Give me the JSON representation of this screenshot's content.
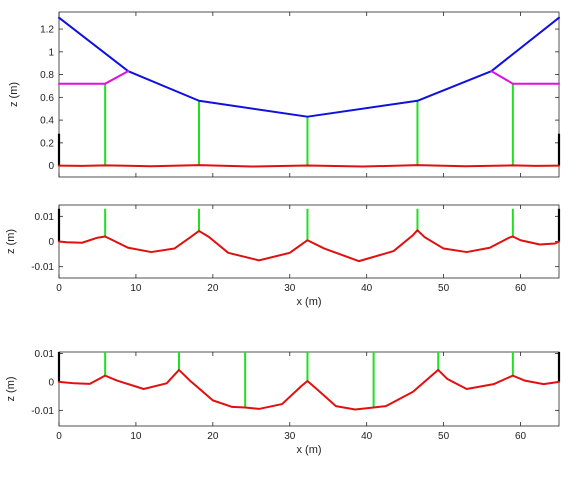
{
  "chart_data": [
    {
      "type": "line",
      "xlim": [
        0,
        65
      ],
      "ylim": [
        -0.1,
        1.35
      ],
      "ylabel": "z (m)",
      "xlabel": "",
      "show_x_tick_labels": false,
      "yticks": [
        0,
        0.2,
        0.4,
        0.6,
        0.8,
        1,
        1.2
      ],
      "ytick_labels": [
        "0",
        "0.2",
        "0.4",
        "0.6",
        "0.8",
        "1",
        "1.2"
      ],
      "xticks": [
        0,
        10,
        20,
        30,
        40,
        50,
        60
      ],
      "xtick_labels": [
        "0",
        "10",
        "20",
        "30",
        "40",
        "50",
        "60"
      ],
      "series": [
        {
          "color": "#1010e0",
          "role": "main-cable",
          "x": [
            0,
            9,
            18.2,
            32.3,
            46.6,
            56.2,
            65
          ],
          "y": [
            1.3,
            0.83,
            0.57,
            0.43,
            0.57,
            0.83,
            1.3
          ]
        },
        {
          "color": "#e010e0",
          "role": "backstay-left",
          "x": [
            0,
            6,
            9
          ],
          "y": [
            0.72,
            0.72,
            0.83
          ]
        },
        {
          "color": "#e010e0",
          "role": "backstay-right",
          "x": [
            56.2,
            59,
            65
          ],
          "y": [
            0.83,
            0.72,
            0.72
          ]
        },
        {
          "color": "#e01010",
          "role": "deck",
          "x": [
            0,
            3,
            6,
            12,
            18.2,
            25,
            32.3,
            39.5,
            46.6,
            52.8,
            59,
            62,
            65
          ],
          "y": [
            0,
            -0.002,
            0.002,
            -0.005,
            0.004,
            -0.008,
            0.001,
            -0.008,
            0.004,
            -0.005,
            0.002,
            -0.002,
            0
          ]
        }
      ],
      "hangers": {
        "color": "#20e020",
        "x": [
          6,
          18.2,
          32.3,
          46.6,
          59
        ],
        "y_bottom": [
          0.002,
          0.004,
          0.001,
          0.004,
          0.002
        ],
        "y_top": [
          0.72,
          0.57,
          0.43,
          0.57,
          0.72
        ]
      },
      "supports": {
        "color": "#000000",
        "x": [
          0,
          65
        ],
        "y_bottom": [
          0,
          0
        ],
        "y_top": [
          0.28,
          0.28
        ]
      }
    },
    {
      "type": "line",
      "xlim": [
        0,
        65
      ],
      "ylim": [
        -0.0145,
        0.0145
      ],
      "ylabel": "z (m)",
      "xlabel": "x (m)",
      "show_x_tick_labels": true,
      "yticks": [
        -0.01,
        0,
        0.01
      ],
      "ytick_labels": [
        "-0.01",
        "0",
        "0.01"
      ],
      "xticks": [
        0,
        10,
        20,
        30,
        40,
        50,
        60
      ],
      "xtick_labels": [
        "0",
        "10",
        "20",
        "30",
        "40",
        "50",
        "60"
      ],
      "series": [
        {
          "color": "#e01010",
          "role": "deck",
          "x": [
            0,
            1,
            3,
            5,
            6,
            7,
            9,
            12,
            15,
            17,
            18.2,
            19.5,
            22,
            26,
            30,
            32.3,
            34.5,
            39,
            43.5,
            46,
            46.6,
            47.5,
            50,
            53,
            56,
            58.5,
            59,
            60,
            62.5,
            64.5,
            65
          ],
          "y": [
            0,
            -0.0003,
            -0.0005,
            0.0015,
            0.002,
            0.0005,
            -0.0025,
            -0.0042,
            -0.0028,
            0.0015,
            0.0042,
            0.0018,
            -0.0045,
            -0.0075,
            -0.0045,
            0.0005,
            -0.0028,
            -0.0078,
            -0.0038,
            0.0025,
            0.0045,
            0.0018,
            -0.0028,
            -0.0042,
            -0.0025,
            0.0015,
            0.002,
            0.0005,
            -0.0012,
            -0.0008,
            0
          ]
        }
      ],
      "hangers": {
        "color": "#20e020",
        "x": [
          6,
          18.2,
          32.3,
          46.6,
          59
        ],
        "y_bottom": [
          0.002,
          0.0042,
          0.0005,
          0.0045,
          0.002
        ],
        "y_top": [
          0.013,
          0.013,
          0.013,
          0.013,
          0.013
        ]
      },
      "supports": {
        "color": "#000000",
        "x": [
          0,
          65
        ],
        "y_bottom": [
          0,
          0
        ],
        "y_top": [
          0.013,
          0.013
        ]
      }
    },
    {
      "type": "line",
      "xlim": [
        0,
        65
      ],
      "ylim": [
        -0.0155,
        0.0105
      ],
      "ylabel": "z (m)",
      "xlabel": "x (m)",
      "show_x_tick_labels": true,
      "yticks": [
        -0.01,
        0,
        0.01
      ],
      "ytick_labels": [
        "-0.01",
        "0",
        "0.01"
      ],
      "xticks": [
        0,
        10,
        20,
        30,
        40,
        50,
        60
      ],
      "xtick_labels": [
        "0",
        "10",
        "20",
        "30",
        "40",
        "50",
        "60"
      ],
      "series": [
        {
          "color": "#e01010",
          "role": "deck",
          "x": [
            0,
            2,
            4,
            6,
            7.5,
            11,
            14,
            15.6,
            17,
            20,
            22.5,
            24.2,
            26,
            29,
            31.5,
            32.3,
            33.5,
            36,
            38.5,
            40.9,
            42.5,
            46,
            49.3,
            50.5,
            53,
            56.5,
            59,
            60.5,
            63,
            65
          ],
          "y": [
            0,
            -0.0005,
            -0.0007,
            0.0022,
            0.0005,
            -0.0025,
            -0.0005,
            0.0042,
            0.0005,
            -0.0065,
            -0.0088,
            -0.009,
            -0.0095,
            -0.0078,
            -0.0015,
            0.0003,
            -0.0025,
            -0.0085,
            -0.0097,
            -0.009,
            -0.0085,
            -0.0035,
            0.0042,
            0.001,
            -0.0025,
            -0.0008,
            0.0022,
            0.0005,
            -0.0008,
            0
          ]
        }
      ],
      "hangers": {
        "color": "#20e020",
        "x": [
          6,
          15.6,
          24.2,
          32.3,
          40.9,
          49.3,
          59
        ],
        "y_bottom": [
          0.0022,
          0.0042,
          -0.009,
          0.0003,
          -0.009,
          0.0042,
          0.0022
        ],
        "y_top": [
          0.0105,
          0.0105,
          0.0105,
          0.0105,
          0.0105,
          0.0105,
          0.0105
        ]
      },
      "supports": {
        "color": "#000000",
        "x": [
          0,
          65
        ],
        "y_bottom": [
          0,
          0
        ],
        "y_top": [
          0.0105,
          0.0105
        ]
      }
    }
  ]
}
